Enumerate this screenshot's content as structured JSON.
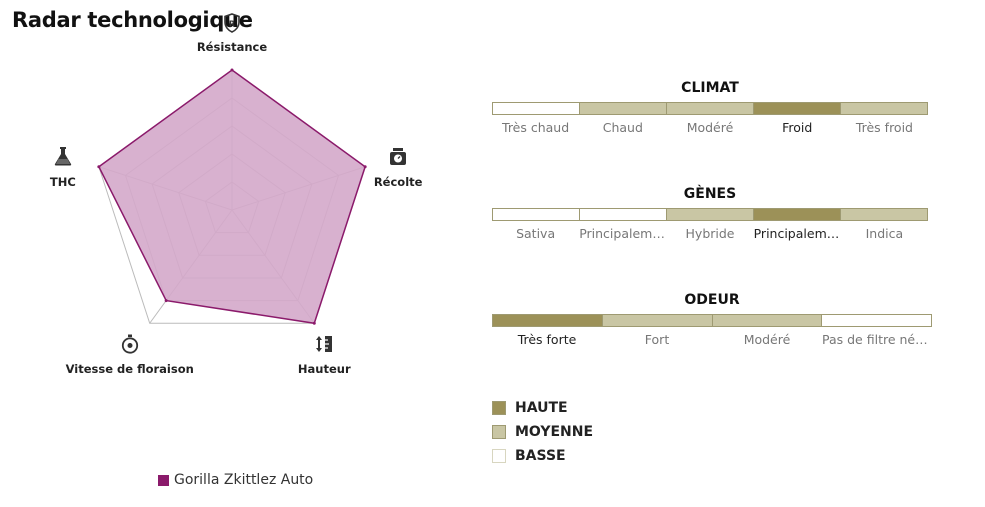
{
  "page_title": "Radar technologique",
  "colors": {
    "strain": "#8b1a6b",
    "strain_fill": "#d4a8ca",
    "haute": "#9c9158",
    "moyenne": "#c9c6a4",
    "basse": "#ffffff",
    "border": "#9e9a72"
  },
  "chart_data": {
    "type": "radar",
    "title": "",
    "axes": [
      {
        "label": "Résistance",
        "icon": "shield-r-icon"
      },
      {
        "label": "Récolte",
        "icon": "scale-icon"
      },
      {
        "label": "Hauteur",
        "icon": "height-icon"
      },
      {
        "label": "Vitesse de floraison",
        "icon": "stopwatch-icon"
      },
      {
        "label": "THC",
        "icon": "flask-icon"
      }
    ],
    "levels": 5,
    "range": [
      0,
      5
    ],
    "series": [
      {
        "name": "Gorilla Zkittlez Auto",
        "values": [
          5,
          5,
          5,
          4,
          5
        ]
      }
    ],
    "legend_position": "bottom"
  },
  "scales": [
    {
      "title": "CLIMAT",
      "segments": [
        "Très chaud",
        "Chaud",
        "Modéré",
        "Froid",
        "Très froid"
      ],
      "levels": [
        "basse",
        "moyenne",
        "moyenne",
        "haute",
        "moyenne"
      ]
    },
    {
      "title": "GÈNES",
      "segments": [
        "Sativa",
        "Principalement sativa",
        "Hybride",
        "Principalement indica",
        "Indica"
      ],
      "levels": [
        "basse",
        "basse",
        "moyenne",
        "haute",
        "moyenne"
      ]
    },
    {
      "title": "ODEUR",
      "segments": [
        "Très forte",
        "Fort",
        "Modéré",
        "Pas de filtre nécessaire"
      ],
      "levels": [
        "haute",
        "moyenne",
        "moyenne",
        "basse"
      ]
    }
  ],
  "level_legend": [
    {
      "key": "haute",
      "label": "HAUTE"
    },
    {
      "key": "moyenne",
      "label": "MOYENNE"
    },
    {
      "key": "basse",
      "label": "BASSE"
    }
  ]
}
